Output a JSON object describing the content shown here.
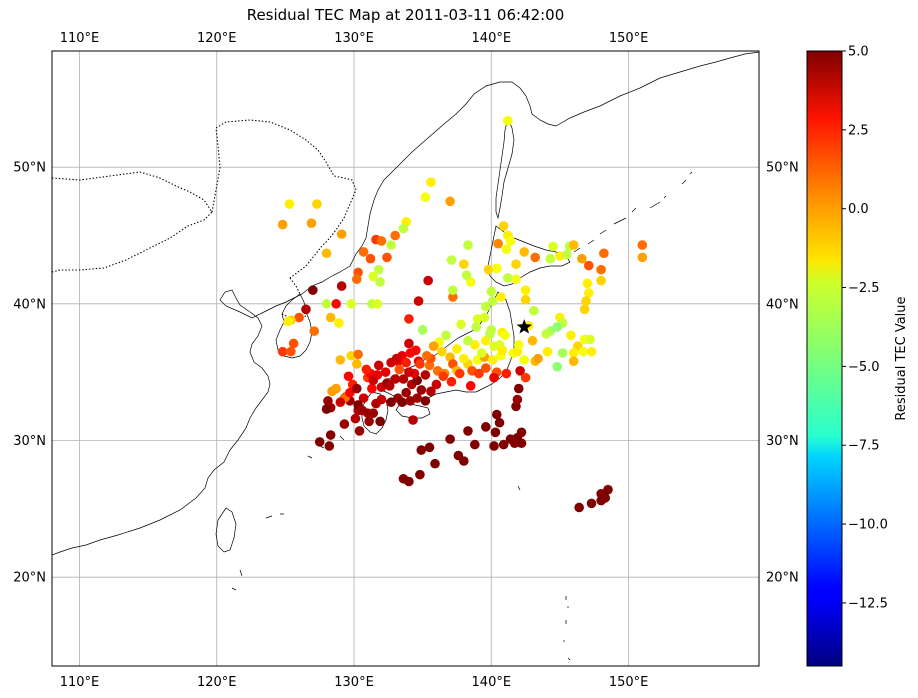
{
  "title": "Residual TEC Map at 2011-03-11 06:42:00",
  "map": {
    "lon_range": [
      108,
      159.5
    ],
    "lat_range": [
      13.5,
      58.5
    ],
    "lon_ticks": [
      110,
      120,
      130,
      140,
      150
    ],
    "lat_ticks": [
      20,
      30,
      40,
      50
    ],
    "lon_tick_labels": [
      "110°E",
      "120°E",
      "130°E",
      "140°E",
      "150°E"
    ],
    "lat_tick_labels": [
      "20°N",
      "30°N",
      "40°N",
      "50°N"
    ],
    "grid": true,
    "epicenter": {
      "lon": 142.4,
      "lat": 38.3,
      "marker": "star-icon"
    }
  },
  "colorbar": {
    "label": "Residual TEC Value",
    "min": -14.5,
    "max": 5.0,
    "ticks": [
      5.0,
      2.5,
      0.0,
      -2.5,
      -5.0,
      -7.5,
      -10.0,
      -12.5
    ],
    "tick_labels": [
      "5.0",
      "2.5",
      "0.0",
      "−2.5",
      "−5.0",
      "−7.5",
      "−10.0",
      "−12.5"
    ],
    "colormap": "jet"
  },
  "chart_data": {
    "type": "scatter",
    "title": "Residual TEC Map at 2011-03-11 06:42:00",
    "xlabel": "",
    "ylabel": "",
    "xlim": [
      108,
      159.5
    ],
    "ylim": [
      13.5,
      58.5
    ],
    "color_label": "Residual TEC Value",
    "points": [
      [
        141.2,
        53.4,
        -2.5
      ],
      [
        135.6,
        48.9,
        -2.0
      ],
      [
        135.2,
        47.8,
        -2.5
      ],
      [
        137.0,
        47.5,
        -0.5
      ],
      [
        125.3,
        47.3,
        -2.0
      ],
      [
        127.3,
        47.3,
        -1.5
      ],
      [
        124.8,
        45.8,
        -0.5
      ],
      [
        126.9,
        45.9,
        -0.5
      ],
      [
        133.8,
        46.0,
        -2.0
      ],
      [
        133.6,
        45.5,
        -3.5
      ],
      [
        129.1,
        45.1,
        -0.5
      ],
      [
        133.0,
        45.0,
        0.5
      ],
      [
        131.6,
        44.7,
        1.5
      ],
      [
        132.0,
        44.6,
        0.5
      ],
      [
        132.7,
        44.3,
        -3.5
      ],
      [
        128.0,
        43.7,
        -1.0
      ],
      [
        130.7,
        43.8,
        0.5
      ],
      [
        131.2,
        43.3,
        1.0
      ],
      [
        132.4,
        43.4,
        1.0
      ],
      [
        130.3,
        42.3,
        1.0
      ],
      [
        131.8,
        42.5,
        -3.5
      ],
      [
        131.4,
        42.0,
        -3.0
      ],
      [
        130.2,
        41.8,
        0.5
      ],
      [
        131.9,
        41.6,
        -3.5
      ],
      [
        129.1,
        41.3,
        4.0
      ],
      [
        127.0,
        41.0,
        5.0
      ],
      [
        128.7,
        40.0,
        2.5
      ],
      [
        128.0,
        40.0,
        -3.5
      ],
      [
        129.8,
        40.0,
        -3.0
      ],
      [
        131.3,
        40.0,
        -3.5
      ],
      [
        131.7,
        40.0,
        -3.0
      ],
      [
        126.5,
        39.6,
        4.0
      ],
      [
        126.0,
        39.0,
        1.0
      ],
      [
        128.3,
        39.0,
        -1.0
      ],
      [
        128.9,
        38.6,
        -2.0
      ],
      [
        127.1,
        38.0,
        0.5
      ],
      [
        125.4,
        38.8,
        -1.5
      ],
      [
        125.2,
        38.7,
        -2.0
      ],
      [
        124.8,
        36.5,
        1.5
      ],
      [
        125.4,
        36.5,
        1.0
      ],
      [
        125.6,
        37.1,
        1.0
      ],
      [
        129.8,
        36.2,
        -1.5
      ],
      [
        130.3,
        36.3,
        0.5
      ],
      [
        129.0,
        35.9,
        -1.0
      ],
      [
        134.0,
        38.9,
        2.0
      ],
      [
        135.0,
        38.1,
        -4.0
      ],
      [
        136.2,
        37.2,
        -2.5
      ],
      [
        136.7,
        37.7,
        -3.5
      ],
      [
        137.8,
        38.5,
        -3.0
      ],
      [
        137.2,
        40.5,
        0.5
      ],
      [
        137.2,
        41.0,
        -3.5
      ],
      [
        138.0,
        42.9,
        -1.5
      ],
      [
        138.5,
        41.6,
        -2.5
      ],
      [
        138.2,
        42.1,
        -3.5
      ],
      [
        138.3,
        44.3,
        -3.5
      ],
      [
        137.1,
        43.2,
        -3.5
      ],
      [
        139.8,
        42.5,
        -1.5
      ],
      [
        140.5,
        44.4,
        0.0
      ],
      [
        140.9,
        45.7,
        -1.5
      ],
      [
        141.2,
        45.0,
        -2.0
      ],
      [
        141.1,
        44.0,
        -2.5
      ],
      [
        141.8,
        42.9,
        -1.5
      ],
      [
        141.8,
        41.8,
        -2.5
      ],
      [
        140.0,
        40.9,
        -3.5
      ],
      [
        140.1,
        40.2,
        -3.5
      ],
      [
        139.6,
        39.8,
        -3.5
      ],
      [
        139.5,
        39.0,
        -3.0
      ],
      [
        139.0,
        38.9,
        -3.0
      ],
      [
        140.0,
        38.1,
        -3.5
      ],
      [
        140.8,
        37.9,
        -2.0
      ],
      [
        141.0,
        37.7,
        -2.5
      ],
      [
        140.6,
        37.0,
        -3.0
      ],
      [
        140.2,
        36.9,
        -3.0
      ],
      [
        139.6,
        37.3,
        -2.0
      ],
      [
        138.8,
        37.0,
        -2.0
      ],
      [
        138.3,
        37.3,
        -3.5
      ],
      [
        137.5,
        36.7,
        -2.0
      ],
      [
        137.0,
        36.1,
        -1.0
      ],
      [
        136.4,
        36.5,
        -1.5
      ],
      [
        135.8,
        36.9,
        -0.5
      ],
      [
        134.7,
        35.8,
        3.0
      ],
      [
        135.5,
        35.5,
        0.5
      ],
      [
        136.1,
        35.1,
        0.5
      ],
      [
        136.6,
        34.9,
        0.0
      ],
      [
        137.2,
        35.6,
        1.0
      ],
      [
        137.5,
        35.1,
        -1.0
      ],
      [
        138.3,
        35.6,
        -1.5
      ],
      [
        139.0,
        35.9,
        -2.5
      ],
      [
        139.5,
        36.1,
        -0.5
      ],
      [
        140.1,
        35.9,
        -2.0
      ],
      [
        140.4,
        35.0,
        1.0
      ],
      [
        141.1,
        34.9,
        2.0
      ],
      [
        142.1,
        35.1,
        3.5
      ],
      [
        142.5,
        34.6,
        1.5
      ],
      [
        140.2,
        34.6,
        3.0
      ],
      [
        139.6,
        35.3,
        1.0
      ],
      [
        138.6,
        35.1,
        1.0
      ],
      [
        137.7,
        34.9,
        1.5
      ],
      [
        142.4,
        35.9,
        -2.5
      ],
      [
        143.2,
        35.8,
        -1.0
      ],
      [
        143.4,
        36.0,
        -0.5
      ],
      [
        143.0,
        37.3,
        -1.0
      ],
      [
        142.7,
        38.4,
        -2.0
      ],
      [
        143.1,
        39.5,
        -3.5
      ],
      [
        142.5,
        40.3,
        -1.5
      ],
      [
        142.5,
        41.0,
        -2.0
      ],
      [
        141.2,
        41.9,
        -3.5
      ],
      [
        142.4,
        43.8,
        -1.0
      ],
      [
        143.2,
        43.4,
        0.5
      ],
      [
        144.3,
        43.3,
        -3.5
      ],
      [
        144.5,
        44.2,
        -3.0
      ],
      [
        145.0,
        43.5,
        -2.0
      ],
      [
        145.7,
        44.2,
        -3.5
      ],
      [
        146.0,
        44.3,
        -1.0
      ],
      [
        145.5,
        43.6,
        -3.5
      ],
      [
        146.6,
        43.3,
        -0.5
      ],
      [
        148.2,
        43.7,
        0.5
      ],
      [
        147.1,
        42.8,
        1.0
      ],
      [
        148.0,
        42.5,
        0.5
      ],
      [
        148.0,
        41.7,
        -1.5
      ],
      [
        147.0,
        41.5,
        -2.0
      ],
      [
        147.1,
        40.8,
        -2.0
      ],
      [
        146.9,
        40.2,
        -1.5
      ],
      [
        146.8,
        39.6,
        -1.5
      ],
      [
        145.0,
        39.0,
        -2.0
      ],
      [
        145.2,
        38.6,
        -3.5
      ],
      [
        144.3,
        38.0,
        -4.0
      ],
      [
        144.8,
        38.3,
        -4.5
      ],
      [
        144.0,
        37.8,
        -3.5
      ],
      [
        145.8,
        37.7,
        -2.0
      ],
      [
        146.8,
        37.4,
        -2.5
      ],
      [
        147.2,
        37.4,
        -3.0
      ],
      [
        146.3,
        36.9,
        -1.5
      ],
      [
        146.7,
        36.5,
        -2.5
      ],
      [
        147.3,
        36.5,
        -2.0
      ],
      [
        146.0,
        36.4,
        -2.0
      ],
      [
        145.2,
        36.4,
        -4.0
      ],
      [
        146.0,
        35.8,
        -1.0
      ],
      [
        144.8,
        35.4,
        -4.5
      ],
      [
        144.1,
        36.5,
        -2.0
      ],
      [
        151.0,
        44.3,
        0.5
      ],
      [
        151.0,
        43.4,
        -0.5
      ],
      [
        131.4,
        32.0,
        4.5
      ],
      [
        131.9,
        31.4,
        5.0
      ],
      [
        130.7,
        33.1,
        3.5
      ],
      [
        130.3,
        32.2,
        4.0
      ],
      [
        129.7,
        32.9,
        4.5
      ],
      [
        129.4,
        33.2,
        1.0
      ],
      [
        128.7,
        33.8,
        -0.5
      ],
      [
        128.4,
        33.6,
        -0.5
      ],
      [
        129.3,
        33.1,
        0.5
      ],
      [
        129.9,
        34.1,
        2.0
      ],
      [
        129.7,
        33.5,
        2.5
      ],
      [
        129.3,
        31.2,
        4.5
      ],
      [
        128.3,
        32.4,
        4.5
      ],
      [
        128.0,
        32.3,
        5.0
      ],
      [
        127.5,
        29.9,
        5.0
      ],
      [
        128.2,
        29.6,
        5.0
      ],
      [
        128.3,
        30.4,
        5.0
      ],
      [
        130.3,
        32.6,
        5.0
      ],
      [
        130.2,
        33.8,
        4.5
      ],
      [
        131.0,
        34.6,
        1.5
      ],
      [
        131.2,
        34.9,
        2.5
      ],
      [
        131.7,
        34.8,
        3.0
      ],
      [
        132.0,
        33.9,
        3.5
      ],
      [
        132.4,
        34.2,
        4.5
      ],
      [
        132.7,
        35.7,
        3.5
      ],
      [
        133.2,
        35.8,
        3.0
      ],
      [
        133.5,
        36.2,
        3.0
      ],
      [
        134.1,
        36.4,
        2.5
      ],
      [
        133.8,
        35.7,
        2.0
      ],
      [
        133.3,
        35.2,
        1.0
      ],
      [
        134.5,
        36.6,
        2.5
      ],
      [
        134.8,
        35.6,
        1.5
      ],
      [
        135.6,
        36.0,
        1.0
      ],
      [
        134.0,
        37.1,
        3.5
      ],
      [
        134.7,
        40.2,
        3.5
      ],
      [
        135.4,
        41.7,
        3.5
      ],
      [
        134.2,
        34.1,
        4.0
      ],
      [
        133.8,
        33.5,
        4.5
      ],
      [
        134.6,
        34.4,
        5.0
      ],
      [
        135.2,
        34.8,
        4.0
      ],
      [
        134.9,
        33.7,
        4.5
      ],
      [
        135.6,
        33.6,
        4.0
      ],
      [
        136.0,
        34.1,
        3.5
      ],
      [
        133.2,
        33.1,
        4.5
      ],
      [
        132.7,
        32.8,
        5.0
      ],
      [
        133.5,
        32.8,
        5.0
      ],
      [
        134.1,
        32.9,
        4.5
      ],
      [
        134.6,
        33.1,
        4.5
      ],
      [
        135.2,
        32.9,
        5.0
      ],
      [
        132.0,
        33.0,
        3.5
      ],
      [
        131.6,
        32.7,
        4.0
      ],
      [
        132.6,
        34.0,
        4.0
      ],
      [
        133.6,
        34.5,
        4.0
      ],
      [
        131.3,
        33.8,
        2.5
      ],
      [
        130.6,
        32.2,
        4.5
      ],
      [
        131.0,
        32.0,
        4.5
      ],
      [
        131.1,
        31.4,
        4.5
      ],
      [
        134.3,
        31.5,
        4.0
      ],
      [
        134.9,
        29.3,
        5.0
      ],
      [
        135.5,
        29.5,
        5.0
      ],
      [
        135.9,
        28.3,
        5.0
      ],
      [
        137.0,
        30.1,
        5.0
      ],
      [
        137.6,
        28.9,
        5.0
      ],
      [
        138.0,
        28.5,
        5.0
      ],
      [
        138.3,
        30.7,
        5.0
      ],
      [
        138.8,
        29.7,
        5.0
      ],
      [
        139.6,
        31.0,
        5.0
      ],
      [
        140.4,
        31.9,
        5.0
      ],
      [
        140.6,
        31.3,
        5.0
      ],
      [
        140.3,
        30.6,
        5.0
      ],
      [
        140.2,
        29.6,
        5.0
      ],
      [
        140.9,
        29.7,
        5.0
      ],
      [
        141.7,
        29.8,
        5.0
      ],
      [
        141.9,
        30.2,
        5.0
      ],
      [
        142.2,
        30.6,
        5.0
      ],
      [
        141.4,
        30.1,
        5.0
      ],
      [
        142.2,
        29.8,
        5.0
      ],
      [
        141.8,
        32.5,
        5.0
      ],
      [
        141.9,
        33.0,
        4.5
      ],
      [
        142.0,
        33.8,
        5.0
      ],
      [
        133.6,
        27.2,
        5.0
      ],
      [
        134.0,
        27.0,
        5.0
      ],
      [
        134.8,
        27.5,
        5.0
      ],
      [
        146.4,
        25.1,
        5.0
      ],
      [
        147.3,
        25.4,
        5.0
      ],
      [
        148.0,
        25.6,
        5.0
      ],
      [
        148.2,
        26.0,
        5.0
      ],
      [
        148.5,
        26.4,
        5.0
      ],
      [
        148.0,
        26.1,
        5.0
      ],
      [
        148.3,
        25.8,
        5.0
      ],
      [
        138.5,
        34.0,
        2.5
      ],
      [
        137.1,
        34.3,
        2.0
      ],
      [
        136.5,
        34.7,
        1.5
      ],
      [
        139.1,
        34.9,
        1.5
      ],
      [
        138.0,
        36.0,
        -2.0
      ],
      [
        139.3,
        36.4,
        -3.0
      ],
      [
        140.7,
        36.2,
        -2.5
      ],
      [
        141.6,
        36.4,
        -2.5
      ],
      [
        141.9,
        36.5,
        -2.0
      ],
      [
        140.8,
        36.6,
        -2.0
      ],
      [
        142.0,
        37.0,
        -2.5
      ],
      [
        139.9,
        37.8,
        -3.5
      ],
      [
        138.9,
        38.3,
        -3.5
      ],
      [
        140.4,
        42.6,
        -2.5
      ],
      [
        140.7,
        40.5,
        -2.0
      ],
      [
        141.4,
        44.6,
        -2.5
      ],
      [
        135.3,
        36.2,
        0.5
      ],
      [
        134.4,
        34.9,
        3.0
      ],
      [
        133.1,
        36.0,
        3.5
      ],
      [
        134.0,
        35.0,
        3.5
      ],
      [
        133.0,
        34.5,
        4.0
      ],
      [
        132.3,
        35.0,
        3.0
      ],
      [
        131.8,
        35.5,
        3.5
      ],
      [
        130.9,
        35.2,
        2.0
      ],
      [
        129.6,
        34.7,
        2.5
      ],
      [
        128.1,
        32.9,
        4.5
      ],
      [
        129.0,
        32.8,
        3.5
      ],
      [
        130.1,
        31.6,
        4.0
      ],
      [
        130.4,
        30.7,
        4.5
      ],
      [
        131.4,
        34.4,
        3.5
      ],
      [
        130.2,
        35.6,
        -1.0
      ]
    ]
  }
}
